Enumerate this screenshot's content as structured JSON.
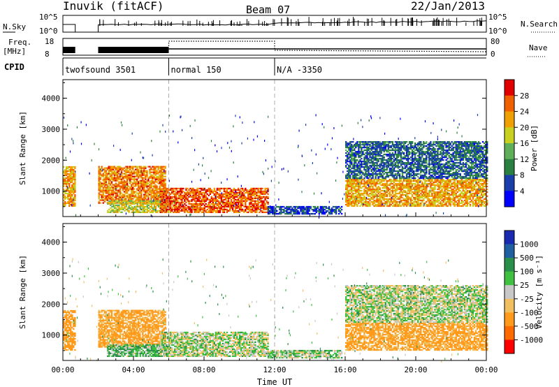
{
  "header": {
    "station": "Inuvik (fitACF)",
    "beam": "Beam 07",
    "date": "22/Jan/2013"
  },
  "top_panels": {
    "nsky_label": "N.Sky",
    "nsearch_label": "N.Search",
    "nsky_ticks": [
      "10^5",
      "10^0"
    ],
    "nsearch_ticks": [
      "10^5",
      "10^0"
    ],
    "freq_label_1": "Freq.",
    "freq_label_2": "[MHz]",
    "freq_ticks": [
      "18",
      "8"
    ],
    "nave_label": "Nave",
    "nave_ticks": [
      "80",
      "0"
    ],
    "cpid_label": "CPID"
  },
  "cpid_segments": [
    {
      "start_hour": 0,
      "end_hour": 6,
      "label": "twofsound 3501"
    },
    {
      "start_hour": 6,
      "end_hour": 12,
      "label": "normal 150"
    },
    {
      "start_hour": 12,
      "end_hour": 24,
      "label": "N/A -3350"
    }
  ],
  "panels": {
    "power": {
      "ylabel": "Slant Range [km]",
      "yticks": [
        "1000",
        "2000",
        "3000",
        "4000"
      ],
      "colorbar_label": "Power [dB]",
      "colorbar_ticks": [
        "28",
        "24",
        "20",
        "16",
        "12",
        "8",
        "4"
      ],
      "colorbar_colors": [
        "#0000ff",
        "#1a3faa",
        "#2a8040",
        "#5fae5a",
        "#c8d020",
        "#f0a000",
        "#f06000",
        "#e00000"
      ]
    },
    "velocity": {
      "ylabel": "Slant Range [km]",
      "yticks": [
        "1000",
        "2000",
        "3000",
        "4000"
      ],
      "colorbar_label": "Velocity [m s⁻¹]",
      "colorbar_ticks": [
        "1000",
        "500",
        "100",
        "25",
        "-25",
        "-100",
        "-500",
        "-1000"
      ],
      "colorbar_colors": [
        "#ff0000",
        "#ff6a00",
        "#ff9a1a",
        "#f0c060",
        "#c8c8c8",
        "#40c040",
        "#2a8f4a",
        "#2060a0",
        "#1a2ab0"
      ]
    }
  },
  "xaxis": {
    "ticks": [
      "00:00",
      "04:00",
      "08:00",
      "12:00",
      "16:00",
      "20:00",
      "00:00"
    ],
    "label": "Time UT"
  },
  "chart_data": {
    "type": "heatmap",
    "title": "Inuvik (fitACF)",
    "subtitle": "Beam 07",
    "date": "22/Jan/2013",
    "xlabel": "Time UT",
    "ylabel": "Slant Range [km]",
    "x_range_hours": [
      0,
      24
    ],
    "y_range_km": [
      180,
      4600
    ],
    "echo_regions": [
      {
        "t0": 0.0,
        "t1": 0.7,
        "r0": 500,
        "r1": 1800,
        "power_db": 22,
        "velocity": -180
      },
      {
        "t0": 2.0,
        "t1": 5.8,
        "r0": 600,
        "r1": 1800,
        "power_db": 24,
        "velocity": -150
      },
      {
        "t0": 2.5,
        "t1": 6.0,
        "r0": 300,
        "r1": 700,
        "power_db": 18,
        "velocity": 80
      },
      {
        "t0": 5.5,
        "t1": 11.6,
        "r0": 300,
        "r1": 1100,
        "power_db": 26,
        "velocity": 10
      },
      {
        "t0": 11.6,
        "t1": 15.8,
        "r0": 250,
        "r1": 500,
        "power_db": 6,
        "velocity": 40
      },
      {
        "t0": 16.0,
        "t1": 24.0,
        "r0": 500,
        "r1": 1400,
        "power_db": 22,
        "velocity": -150
      },
      {
        "t0": 16.0,
        "t1": 24.0,
        "r0": 1400,
        "r1": 2600,
        "power_db": 8,
        "velocity": 10
      }
    ]
  }
}
